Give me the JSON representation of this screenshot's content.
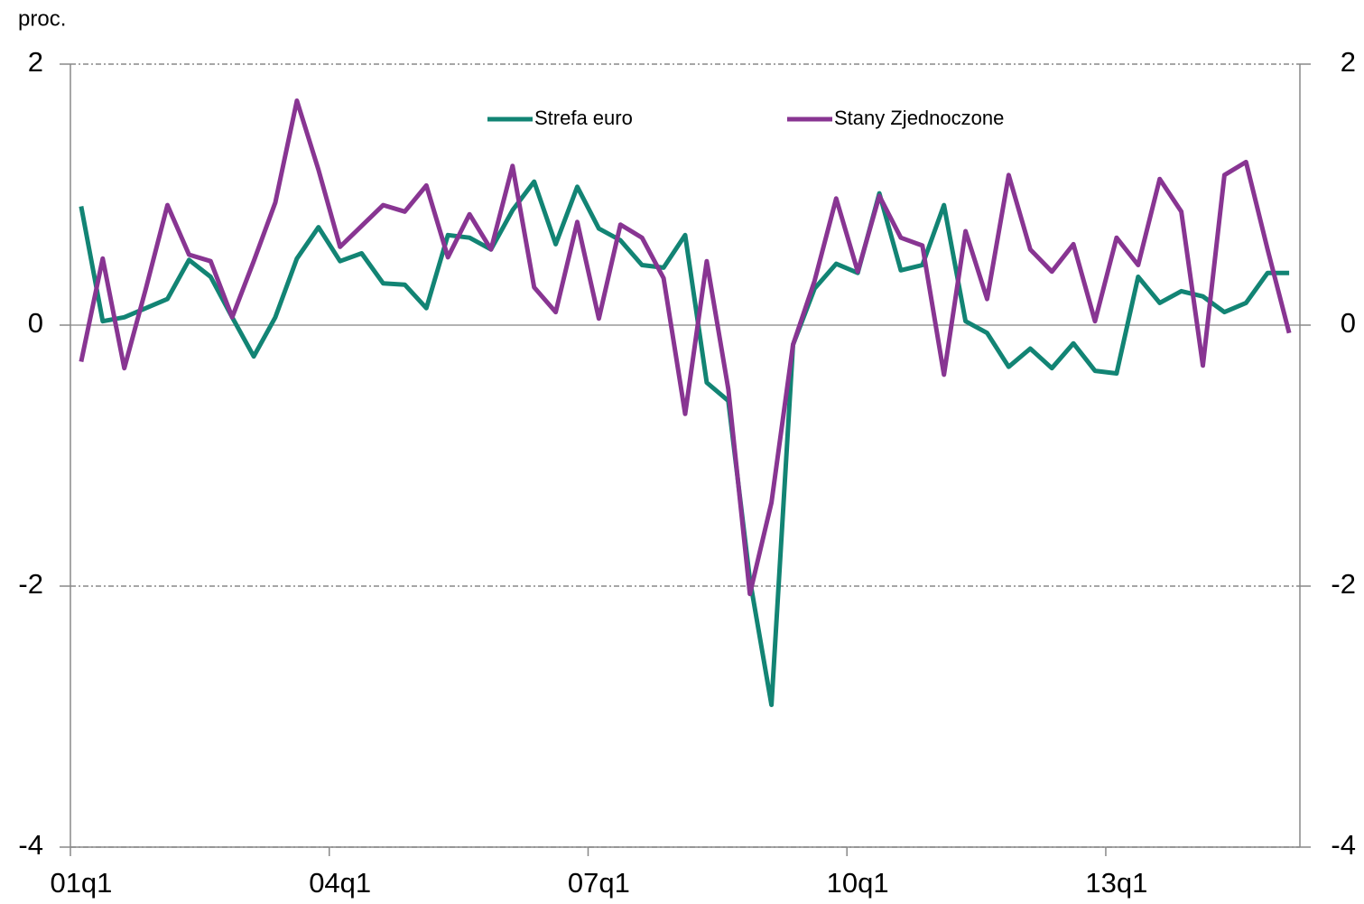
{
  "chart_data": {
    "type": "line",
    "y_label": "proc.",
    "categories": [
      "01q1",
      null,
      null,
      null,
      null,
      null,
      null,
      null,
      null,
      null,
      null,
      null,
      "04q1",
      null,
      null,
      null,
      null,
      null,
      null,
      null,
      null,
      null,
      null,
      null,
      "07q1",
      null,
      null,
      null,
      null,
      null,
      null,
      null,
      null,
      null,
      null,
      null,
      "10q1",
      null,
      null,
      null,
      null,
      null,
      null,
      null,
      null,
      null,
      null,
      null,
      "13q1",
      null,
      null,
      null,
      null,
      null,
      null,
      null,
      null
    ],
    "series": [
      {
        "name": "Strefa euro",
        "color": "#128474",
        "values": [
          0.91,
          0.03,
          0.06,
          0.13,
          0.2,
          0.5,
          0.37,
          0.06,
          -0.24,
          0.06,
          0.51,
          0.75,
          0.49,
          0.55,
          0.32,
          0.31,
          0.13,
          0.69,
          0.67,
          0.58,
          0.88,
          1.1,
          0.62,
          1.06,
          0.74,
          0.65,
          0.46,
          0.44,
          0.69,
          -0.44,
          -0.58,
          -1.95,
          -2.91,
          -0.15,
          0.28,
          0.47,
          0.4,
          1.01,
          0.42,
          0.46,
          0.92,
          0.03,
          -0.06,
          -0.32,
          -0.18,
          -0.33,
          -0.14,
          -0.35,
          -0.37,
          0.37,
          0.17,
          0.26,
          0.22,
          0.1,
          0.17,
          0.4,
          0.4
        ]
      },
      {
        "name": "Stany Zjednoczone",
        "color": "#883592",
        "values": [
          -0.28,
          0.51,
          -0.33,
          0.28,
          0.92,
          0.54,
          0.49,
          0.06,
          0.49,
          0.94,
          1.72,
          1.19,
          0.6,
          0.76,
          0.92,
          0.87,
          1.07,
          0.52,
          0.85,
          0.58,
          1.22,
          0.29,
          0.1,
          0.79,
          0.05,
          0.77,
          0.67,
          0.36,
          -0.68,
          0.49,
          -0.49,
          -2.06,
          -1.36,
          -0.15,
          0.34,
          0.97,
          0.41,
          0.99,
          0.67,
          0.61,
          -0.38,
          0.72,
          0.2,
          1.15,
          0.58,
          0.41,
          0.62,
          0.03,
          0.67,
          0.46,
          1.12,
          0.87,
          -0.31,
          1.15,
          1.25,
          0.58,
          -0.06
        ]
      }
    ],
    "ylim": [
      -4,
      2
    ],
    "yticks": [
      -4,
      -2,
      0,
      2
    ],
    "y2lim": [
      -4,
      2
    ],
    "y2ticks": [
      -4,
      -2,
      0,
      2
    ],
    "grid": true,
    "legend": "top"
  }
}
